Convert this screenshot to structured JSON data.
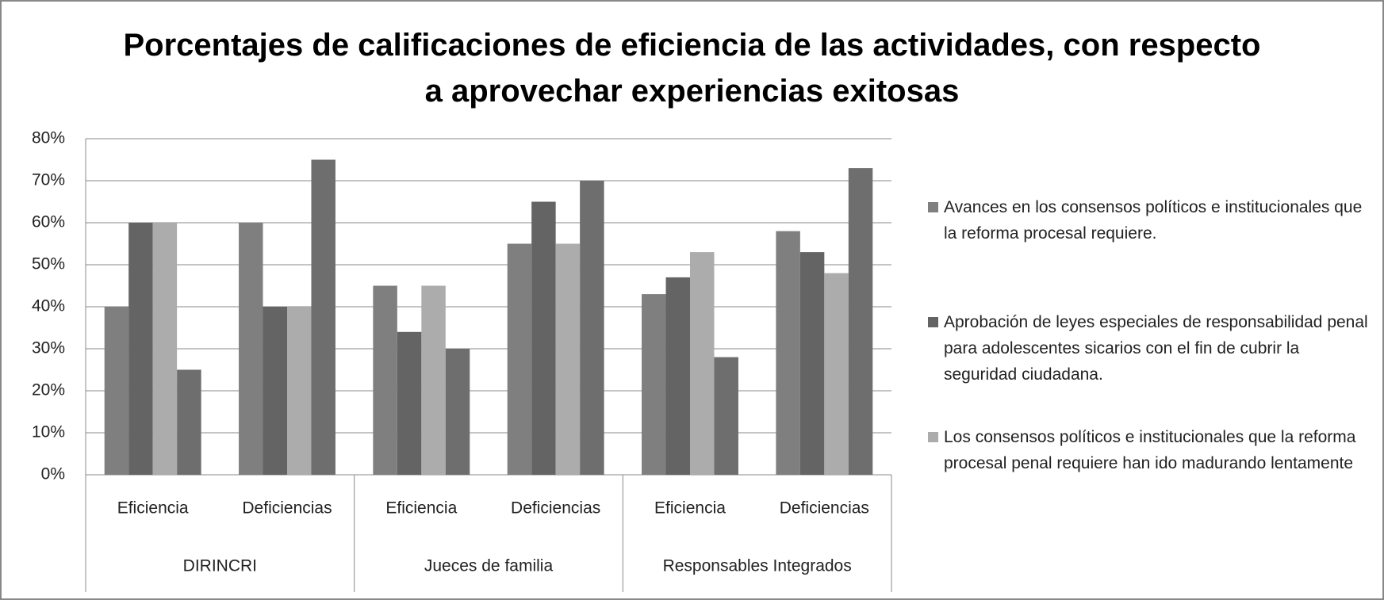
{
  "chart_data": {
    "type": "bar",
    "title": "Porcentajes de calificaciones de eficiencia de las actividades, con respecto a aprovechar experiencias exitosas",
    "categories": [
      "Eficiencia",
      "Deficiencias",
      "Eficiencia",
      "Deficiencias",
      "Eficiencia",
      "Deficiencias"
    ],
    "groups": [
      "DIRINCRI",
      "Jueces de familia",
      "Responsables Integrados"
    ],
    "series": [
      {
        "name": "Avances en los consensos políticos e institucionales que la reforma procesal requiere.",
        "color": "#7f7f7f",
        "values": [
          40,
          60,
          45,
          55,
          43,
          58
        ]
      },
      {
        "name": "Aprobación de leyes especiales de responsabilidad penal para adolescentes sicarios con el fin de cubrir la seguridad ciudadana.",
        "color": "#646464",
        "values": [
          60,
          40,
          34,
          65,
          47,
          53
        ]
      },
      {
        "name": "Los consensos políticos e institucionales que la reforma procesal penal requiere han ido madurando lentamente",
        "color": "#acacac",
        "values": [
          60,
          40,
          45,
          55,
          53,
          48
        ]
      },
      {
        "color": "#6e6e6e",
        "values": [
          25,
          75,
          30,
          70,
          28,
          73
        ]
      }
    ],
    "ylim": [
      0,
      80
    ],
    "yticks": [
      {
        "value": 0,
        "label": "0%"
      },
      {
        "value": 10,
        "label": "10%"
      },
      {
        "value": 20,
        "label": "20%"
      },
      {
        "value": 30,
        "label": "30%"
      },
      {
        "value": 40,
        "label": "40%"
      },
      {
        "value": 50,
        "label": "50%"
      },
      {
        "value": 60,
        "label": "60%"
      },
      {
        "value": 70,
        "label": "70%"
      },
      {
        "value": 80,
        "label": "80%"
      }
    ],
    "grid": true,
    "legend": "right"
  }
}
